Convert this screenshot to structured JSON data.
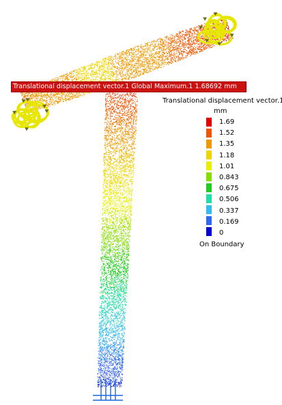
{
  "banner": {
    "text": "Translational displacement vector.1  Global Maximum.1  1.68692 mm"
  },
  "legend": {
    "title": "Translational displacement vector.1",
    "unit": "mm",
    "values": [
      "1.69",
      "1.52",
      "1.35",
      "1.18",
      "1.01",
      "0.843",
      "0.675",
      "0.506",
      "0.337",
      "0.169",
      "0"
    ],
    "colors": [
      "#e00000",
      "#ee5500",
      "#ee9900",
      "#f0d400",
      "#e8f000",
      "#88dd00",
      "#22cc22",
      "#22ddaa",
      "#33bbee",
      "#3366ee",
      "#0000cc"
    ],
    "footer": "On Boundary"
  }
}
